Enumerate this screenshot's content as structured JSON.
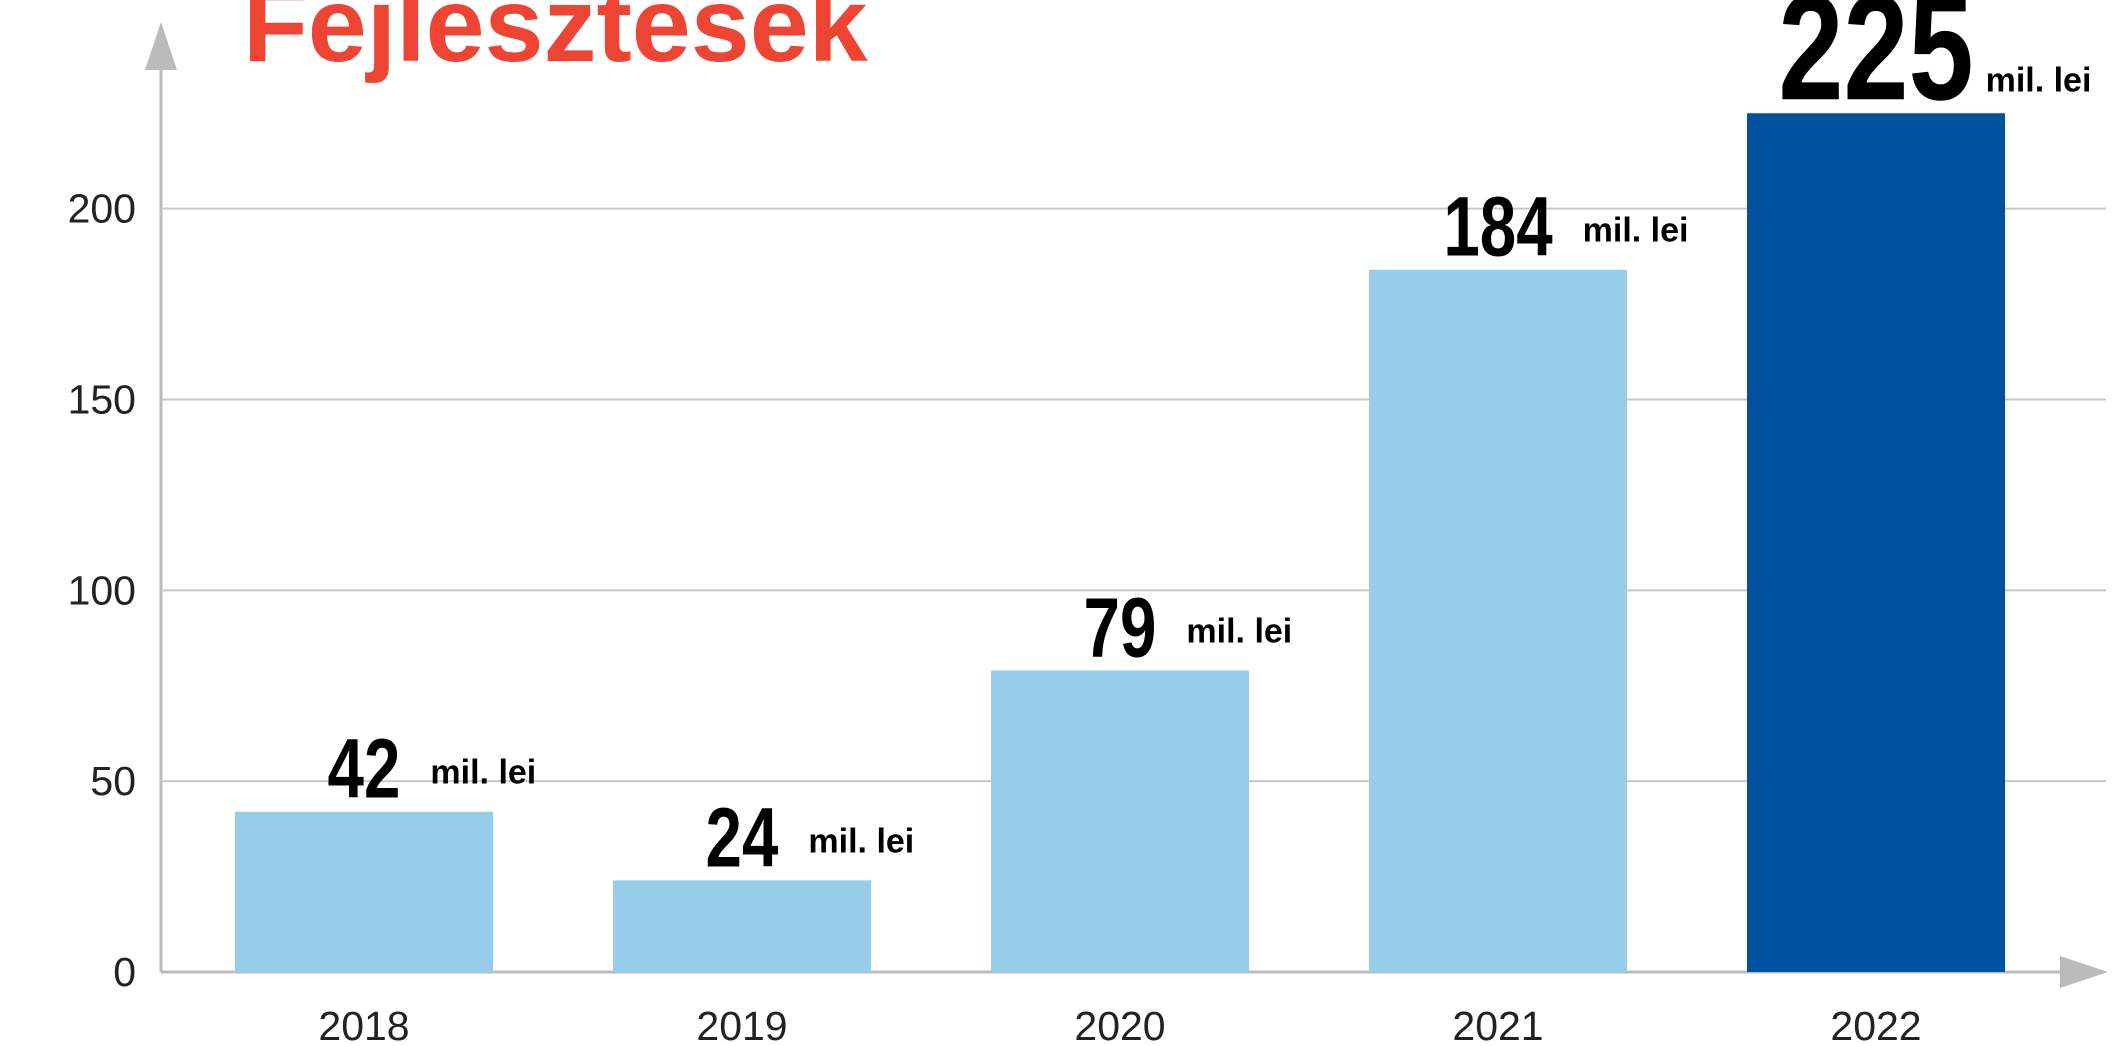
{
  "chart_data": {
    "type": "bar",
    "title": "Fejlesztesek",
    "categories": [
      "2018",
      "2019",
      "2020",
      "2021",
      "2022"
    ],
    "values": [
      42,
      24,
      79,
      184,
      225
    ],
    "value_unit": "mil. lei",
    "colors": [
      "#96cdea",
      "#96cdea",
      "#96cdea",
      "#96cdea",
      "#00519e"
    ],
    "ylim": [
      0,
      240
    ],
    "yticks": [
      0,
      50,
      100,
      150,
      200
    ],
    "grid": true
  }
}
